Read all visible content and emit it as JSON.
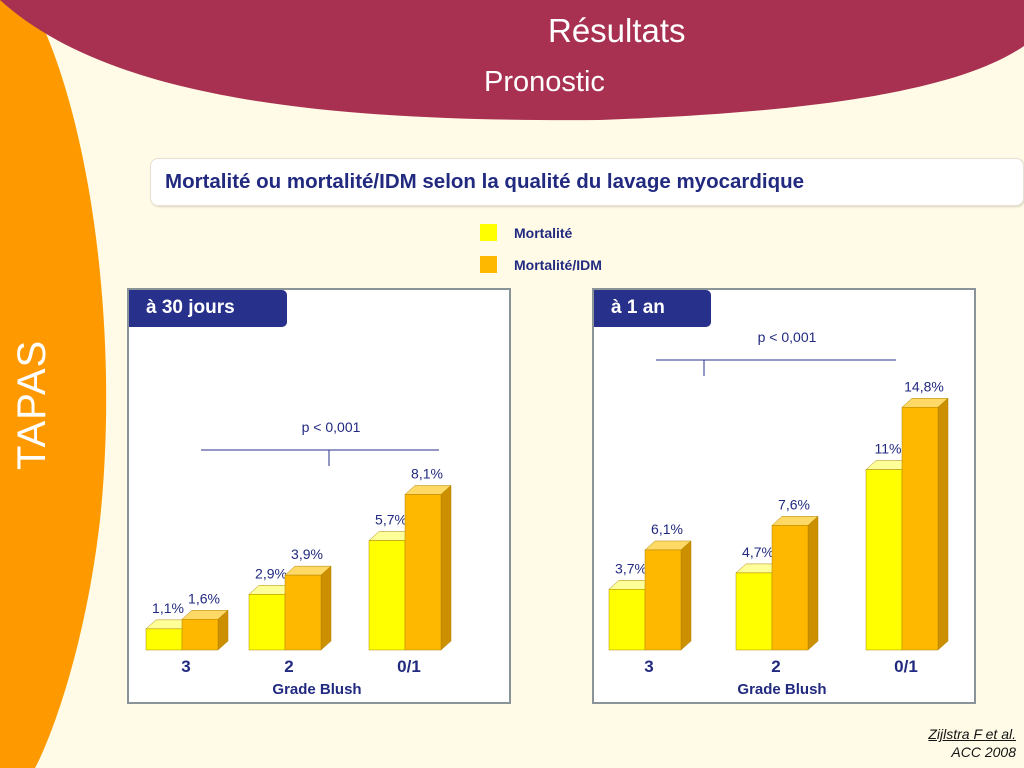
{
  "header": {
    "title": "Résultats",
    "subtitle": "Pronostic"
  },
  "side_label": "TAPAS",
  "chart_title": "Mortalité ou mortalité/IDM selon la qualité du lavage  myocardique",
  "legend": [
    {
      "label": "Mortalité",
      "color": "#ffff00"
    },
    {
      "label": "Mortalité/IDM",
      "color": "#ffb800"
    }
  ],
  "reference": {
    "author": "Zijlstra F et al.",
    "journal": "ACC 2008"
  },
  "colors": {
    "header_band": "#a83152",
    "side_band": "#ff9900",
    "background": "#fffbe6",
    "text_dark": "#222a80",
    "tag_fill": "#27308a"
  },
  "chart_data": [
    {
      "type": "bar",
      "title": "à 30 jours",
      "xlabel": "Grade Blush",
      "categories": [
        "3",
        "2",
        "0/1"
      ],
      "series": [
        {
          "name": "Mortalité",
          "values": [
            1.1,
            2.9,
            5.7
          ],
          "labels": [
            "1,1%",
            "2,9%",
            "5,7%"
          ]
        },
        {
          "name": "Mortalité/IDM",
          "values": [
            1.6,
            3.9,
            8.1
          ],
          "labels": [
            "1,6%",
            "3,9%",
            "8,1%"
          ]
        }
      ],
      "annotation": "p < 0,001"
    },
    {
      "type": "bar",
      "title": "à 1 an",
      "xlabel": "Grade Blush",
      "categories": [
        "3",
        "2",
        "0/1"
      ],
      "series": [
        {
          "name": "Mortalité",
          "values": [
            3.7,
            4.7,
            11
          ],
          "labels": [
            "3,7%",
            "4,7%",
            "11%"
          ]
        },
        {
          "name": "Mortalité/IDM",
          "values": [
            6.1,
            7.6,
            14.8
          ],
          "labels": [
            "6,1%",
            "7,6%",
            "14,8%"
          ]
        }
      ],
      "annotation": "p < 0,001"
    }
  ]
}
